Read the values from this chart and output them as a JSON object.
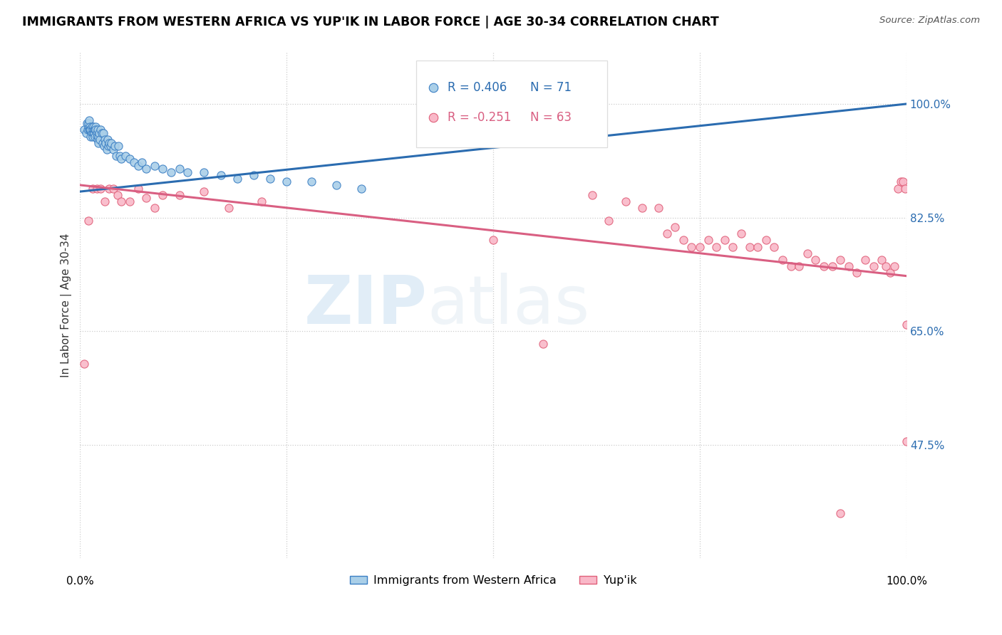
{
  "title": "IMMIGRANTS FROM WESTERN AFRICA VS YUP'IK IN LABOR FORCE | AGE 30-34 CORRELATION CHART",
  "source": "Source: ZipAtlas.com",
  "ylabel": "In Labor Force | Age 30-34",
  "yticks": [
    0.475,
    0.65,
    0.825,
    1.0
  ],
  "ytick_labels": [
    "47.5%",
    "65.0%",
    "82.5%",
    "100.0%"
  ],
  "xmin": 0.0,
  "xmax": 1.0,
  "ymin": 0.3,
  "ymax": 1.08,
  "legend_r1": "R = 0.406",
  "legend_n1": "N = 71",
  "legend_r2": "R = -0.251",
  "legend_n2": "N = 63",
  "blue_color": "#aacfe8",
  "blue_edge_color": "#3b7fc4",
  "blue_line_color": "#2b6cb0",
  "pink_color": "#f9b8c8",
  "pink_edge_color": "#e0607a",
  "pink_line_color": "#d95f82",
  "watermark_zip": "ZIP",
  "watermark_atlas": "atlas",
  "blue_trend_x0": 0.0,
  "blue_trend_y0": 0.865,
  "blue_trend_x1": 1.0,
  "blue_trend_y1": 1.0,
  "pink_trend_x0": 0.0,
  "pink_trend_y0": 0.875,
  "pink_trend_x1": 1.0,
  "pink_trend_y1": 0.735,
  "blue_scatter_x": [
    0.005,
    0.007,
    0.008,
    0.009,
    0.01,
    0.01,
    0.011,
    0.011,
    0.012,
    0.012,
    0.013,
    0.013,
    0.014,
    0.014,
    0.015,
    0.015,
    0.016,
    0.016,
    0.017,
    0.017,
    0.018,
    0.018,
    0.019,
    0.019,
    0.02,
    0.02,
    0.021,
    0.021,
    0.022,
    0.022,
    0.023,
    0.024,
    0.025,
    0.026,
    0.027,
    0.028,
    0.029,
    0.03,
    0.031,
    0.032,
    0.033,
    0.034,
    0.035,
    0.037,
    0.038,
    0.04,
    0.042,
    0.044,
    0.046,
    0.048,
    0.05,
    0.055,
    0.06,
    0.065,
    0.07,
    0.075,
    0.08,
    0.09,
    0.1,
    0.11,
    0.12,
    0.13,
    0.15,
    0.17,
    0.19,
    0.21,
    0.23,
    0.25,
    0.28,
    0.31,
    0.34
  ],
  "blue_scatter_y": [
    0.96,
    0.955,
    0.97,
    0.96,
    0.965,
    0.97,
    0.96,
    0.975,
    0.965,
    0.96,
    0.95,
    0.96,
    0.965,
    0.955,
    0.96,
    0.95,
    0.965,
    0.955,
    0.96,
    0.955,
    0.96,
    0.95,
    0.965,
    0.96,
    0.955,
    0.95,
    0.945,
    0.96,
    0.95,
    0.94,
    0.955,
    0.945,
    0.96,
    0.955,
    0.94,
    0.955,
    0.935,
    0.945,
    0.94,
    0.93,
    0.945,
    0.935,
    0.94,
    0.935,
    0.94,
    0.93,
    0.935,
    0.92,
    0.935,
    0.92,
    0.915,
    0.92,
    0.915,
    0.91,
    0.905,
    0.91,
    0.9,
    0.905,
    0.9,
    0.895,
    0.9,
    0.895,
    0.895,
    0.89,
    0.885,
    0.89,
    0.885,
    0.88,
    0.88,
    0.875,
    0.87
  ],
  "pink_scatter_x": [
    0.005,
    0.01,
    0.015,
    0.02,
    0.025,
    0.03,
    0.035,
    0.04,
    0.045,
    0.05,
    0.06,
    0.07,
    0.08,
    0.09,
    0.1,
    0.12,
    0.15,
    0.18,
    0.22,
    0.5,
    0.56,
    0.62,
    0.64,
    0.66,
    0.68,
    0.7,
    0.71,
    0.72,
    0.73,
    0.74,
    0.75,
    0.76,
    0.77,
    0.78,
    0.79,
    0.8,
    0.81,
    0.82,
    0.83,
    0.84,
    0.85,
    0.86,
    0.87,
    0.88,
    0.89,
    0.9,
    0.91,
    0.92,
    0.93,
    0.94,
    0.95,
    0.96,
    0.97,
    0.975,
    0.98,
    0.985,
    0.99,
    0.993,
    0.996,
    0.998,
    1.0,
    1.0,
    0.92
  ],
  "pink_scatter_y": [
    0.6,
    0.82,
    0.87,
    0.87,
    0.87,
    0.85,
    0.87,
    0.87,
    0.86,
    0.85,
    0.85,
    0.87,
    0.855,
    0.84,
    0.86,
    0.86,
    0.865,
    0.84,
    0.85,
    0.79,
    0.63,
    0.86,
    0.82,
    0.85,
    0.84,
    0.84,
    0.8,
    0.81,
    0.79,
    0.78,
    0.78,
    0.79,
    0.78,
    0.79,
    0.78,
    0.8,
    0.78,
    0.78,
    0.79,
    0.78,
    0.76,
    0.75,
    0.75,
    0.77,
    0.76,
    0.75,
    0.75,
    0.76,
    0.75,
    0.74,
    0.76,
    0.75,
    0.76,
    0.75,
    0.74,
    0.75,
    0.87,
    0.88,
    0.88,
    0.87,
    0.66,
    0.48,
    0.37
  ]
}
